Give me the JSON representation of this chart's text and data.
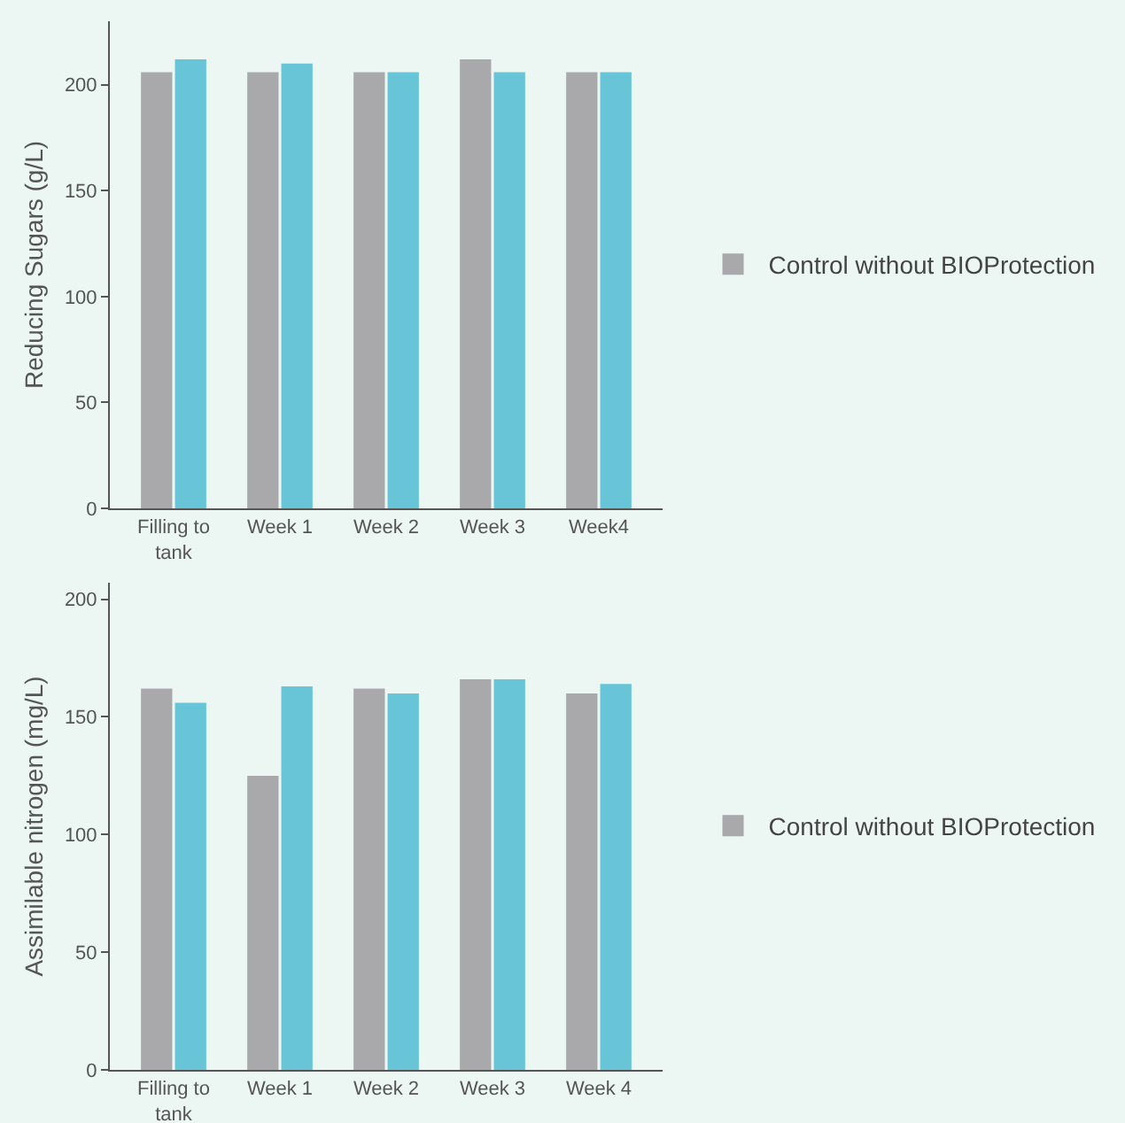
{
  "chart_data": [
    {
      "type": "bar",
      "ylabel": "Reducing Sugars (g/L)",
      "categories": [
        "Filling to tank",
        "Week 1",
        "Week 2",
        "Week 3",
        "Week4"
      ],
      "ylim": [
        0,
        230
      ],
      "yticks": [
        0,
        50,
        100,
        150,
        200
      ],
      "grid": false,
      "legend": "right",
      "series": [
        {
          "name": "Control without BIOProtection",
          "color": "#a9a9ab",
          "values": [
            206,
            206,
            206,
            212,
            206
          ]
        },
        {
          "color": "#68c5d7",
          "values": [
            212,
            210,
            206,
            206,
            206
          ]
        }
      ]
    },
    {
      "type": "bar",
      "ylabel": "Assimilable nitrogen (mg/L)",
      "categories": [
        "Filling to tank",
        "Week 1",
        "Week 2",
        "Week 3",
        "Week 4"
      ],
      "ylim": [
        0,
        207
      ],
      "yticks": [
        0,
        50,
        100,
        150,
        200
      ],
      "grid": false,
      "legend": "right",
      "series": [
        {
          "name": "Control without BIOProtection",
          "color": "#a9a9ab",
          "values": [
            162,
            125,
            162,
            166,
            160
          ]
        },
        {
          "color": "#68c5d7",
          "values": [
            156,
            163,
            160,
            166,
            164
          ]
        }
      ]
    }
  ]
}
